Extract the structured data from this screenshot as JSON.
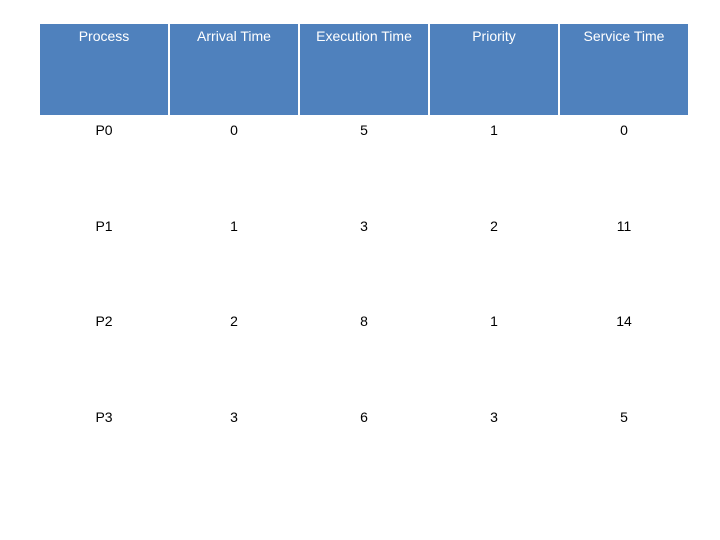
{
  "table": {
    "columns": [
      "Process",
      "Arrival Time",
      "Execution Time",
      "Priority",
      "Service Time"
    ],
    "rows": [
      [
        "P0",
        0,
        5,
        1,
        0
      ],
      [
        "P1",
        1,
        3,
        2,
        11
      ],
      [
        "P2",
        2,
        8,
        1,
        14
      ],
      [
        "P3",
        3,
        6,
        3,
        5
      ]
    ]
  }
}
